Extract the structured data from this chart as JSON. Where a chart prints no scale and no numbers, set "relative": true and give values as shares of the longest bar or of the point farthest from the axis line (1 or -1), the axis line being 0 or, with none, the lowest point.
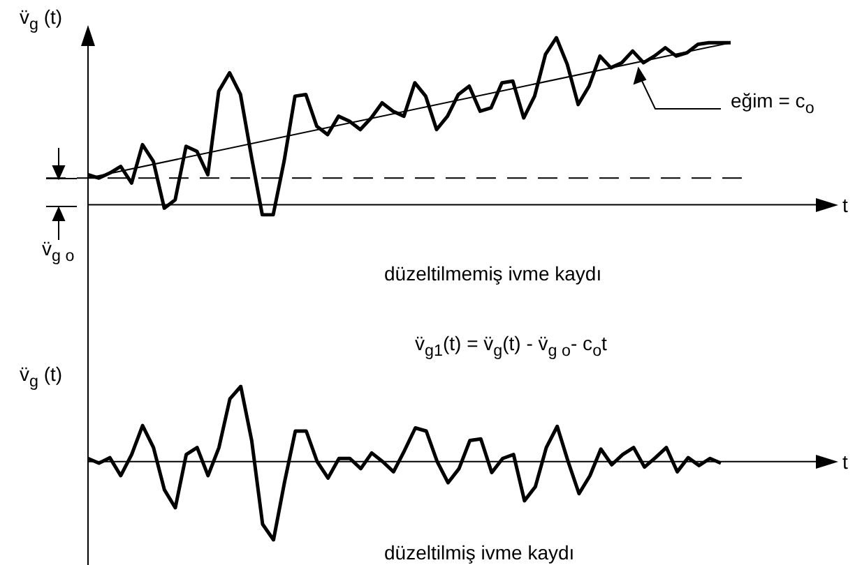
{
  "chart_data": [
    {
      "type": "line",
      "relative": true,
      "ylabel": "v̈$_{g}$ (t)",
      "xlabel": "t",
      "marker": "none",
      "line_style": "solid",
      "annotations": [
        "v̈$_{g o}$",
        "eğim = c$_{o}$",
        "düzeltilmemiş ivme kaydı",
        "v̈$_{g1}$(t) = v̈$_{g}$(t) -  v̈$_{g o}$-  c$_{o}$t"
      ],
      "ref_lines": [
        {
          "axis": "y",
          "value": 0.16,
          "line_style": "dashed"
        }
      ],
      "categories": [
        null,
        null,
        null,
        null,
        null,
        null,
        null,
        null,
        null,
        null,
        null,
        null,
        null,
        null,
        null,
        null,
        null,
        null,
        null,
        null,
        null,
        null,
        null,
        null,
        null,
        null,
        null,
        null,
        null,
        null,
        null,
        null,
        null,
        null,
        null,
        null,
        null,
        null,
        null,
        null,
        null,
        null,
        null,
        null,
        null,
        null,
        null,
        null,
        null,
        null,
        null,
        null,
        null,
        null,
        null,
        null,
        null,
        null,
        null,
        null
      ],
      "series": [
        {
          "color": "#000000",
          "values": [
            0.18,
            0.16,
            0.19,
            0.23,
            0.13,
            0.36,
            0.26,
            -0.02,
            0.03,
            0.35,
            0.32,
            0.18,
            0.68,
            0.79,
            0.66,
            0.29,
            -0.06,
            -0.06,
            0.26,
            0.65,
            0.66,
            0.47,
            0.42,
            0.53,
            0.5,
            0.45,
            0.52,
            0.61,
            0.56,
            0.53,
            0.73,
            0.65,
            0.45,
            0.53,
            0.66,
            0.71,
            0.56,
            0.58,
            0.73,
            0.74,
            0.52,
            0.65,
            0.9,
            1,
            0.84,
            0.6,
            0.71,
            0.89,
            0.82,
            0.85,
            0.92,
            0.85,
            0.89,
            0.94,
            0.89,
            0.91,
            0.96,
            0.97,
            0.97,
            0.97
          ]
        },
        {
          "type": "line",
          "color": "#000000",
          "values": [
            0.16,
            null,
            null,
            null,
            null,
            null,
            null,
            null,
            null,
            null,
            null,
            null,
            null,
            null,
            null,
            null,
            null,
            null,
            null,
            null,
            null,
            null,
            null,
            null,
            null,
            null,
            null,
            null,
            null,
            null,
            null,
            null,
            null,
            null,
            null,
            null,
            null,
            null,
            null,
            null,
            null,
            null,
            null,
            null,
            null,
            null,
            null,
            null,
            null,
            null,
            null,
            null,
            null,
            null,
            null,
            null,
            null,
            null,
            null,
            0.97
          ]
        }
      ]
    },
    {
      "type": "line",
      "relative": true,
      "ylabel": "v̈$_{g}$ (t)",
      "xlabel": "t",
      "marker": "none",
      "line_style": "solid",
      "annotations": [
        "düzeltilmiş ivme kaydı"
      ],
      "categories": [
        null,
        null,
        null,
        null,
        null,
        null,
        null,
        null,
        null,
        null,
        null,
        null,
        null,
        null,
        null,
        null,
        null,
        null,
        null,
        null,
        null,
        null,
        null,
        null,
        null,
        null,
        null,
        null,
        null,
        null,
        null,
        null,
        null,
        null,
        null,
        null,
        null,
        null,
        null,
        null,
        null,
        null,
        null,
        null,
        null,
        null,
        null,
        null,
        null,
        null,
        null,
        null,
        null,
        null,
        null,
        null,
        null,
        null,
        null
      ],
      "series": [
        {
          "color": "#000000",
          "values": [
            0.04,
            -0.02,
            0.05,
            -0.18,
            0.09,
            0.46,
            0.18,
            -0.36,
            -0.59,
            0.09,
            0.18,
            -0.18,
            0.18,
            0.8,
            0.96,
            0.27,
            -0.8,
            -1,
            -0.27,
            0.39,
            0.39,
            0,
            -0.21,
            0.04,
            0.04,
            -0.09,
            0.11,
            0,
            -0.13,
            0.14,
            0.43,
            0.39,
            0,
            -0.27,
            -0.09,
            0.27,
            0.29,
            -0.14,
            0.04,
            0.09,
            -0.5,
            -0.32,
            0.18,
            0.45,
            0,
            -0.41,
            -0.18,
            0.16,
            -0.04,
            0.09,
            0.18,
            -0.07,
            0.05,
            0.18,
            -0.13,
            0.05,
            -0.05,
            0.04,
            -0.02
          ]
        }
      ]
    }
  ]
}
